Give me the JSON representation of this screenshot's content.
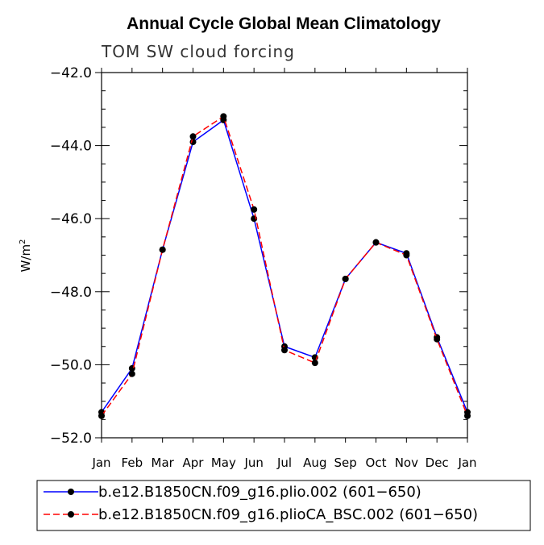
{
  "chart_data": {
    "type": "line",
    "title": "Annual Cycle Global Mean Climatology",
    "subtitle": "TOM SW cloud forcing",
    "ylabel": "W/m",
    "ylabel_sup": "2",
    "xlabel": "",
    "categories": [
      "Jan",
      "Feb",
      "Mar",
      "Apr",
      "May",
      "Jun",
      "Jul",
      "Aug",
      "Sep",
      "Oct",
      "Nov",
      "Dec",
      "Jan"
    ],
    "ylim": [
      -52.0,
      -42.0
    ],
    "yticks": [
      -52.0,
      -50.0,
      -48.0,
      -46.0,
      -44.0,
      -42.0
    ],
    "ytick_labels": [
      "−52.0",
      "−50.0",
      "−48.0",
      "−46.0",
      "−44.0",
      "−42.0"
    ],
    "series": [
      {
        "name": "b.e12.B1850CN.f09_g16.plio.002 (601−650)",
        "color": "#0000ff",
        "dash": "solid",
        "values": [
          -51.3,
          -50.1,
          -46.85,
          -43.9,
          -43.3,
          -46.0,
          -49.5,
          -49.8,
          -47.65,
          -46.65,
          -46.95,
          -49.25,
          -51.3
        ]
      },
      {
        "name": "b.e12.B1850CN.f09_g16.plioCA_BSC.002 (601−650)",
        "color": "#ff0000",
        "dash": "dashed",
        "values": [
          -51.4,
          -50.25,
          -46.85,
          -43.75,
          -43.2,
          -45.75,
          -49.6,
          -49.95,
          -47.65,
          -46.65,
          -47.0,
          -49.3,
          -51.4
        ]
      }
    ]
  }
}
